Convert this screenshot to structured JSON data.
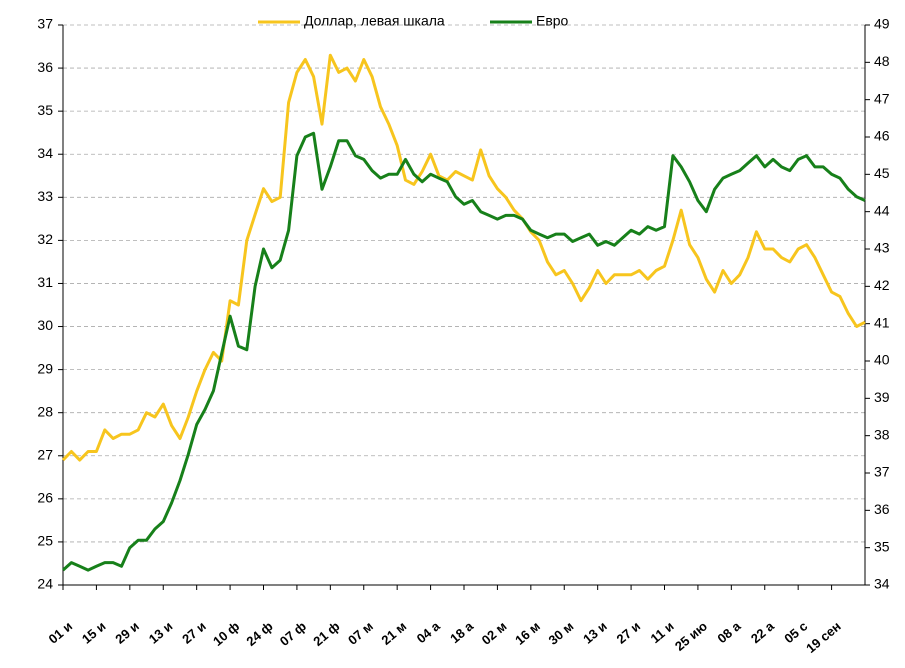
{
  "chart_data": {
    "type": "line",
    "categories": [
      "01 и",
      null,
      null,
      null,
      "15 и",
      null,
      null,
      null,
      "29 и",
      null,
      null,
      null,
      "13 и",
      null,
      null,
      null,
      "27 и",
      null,
      null,
      null,
      "10 ф",
      null,
      null,
      null,
      "24 ф",
      null,
      null,
      null,
      "07 ф",
      null,
      null,
      null,
      "21 ф",
      null,
      null,
      null,
      "07 м",
      null,
      null,
      null,
      "21 м",
      null,
      null,
      null,
      "04 а",
      null,
      null,
      null,
      "18 а",
      null,
      null,
      null,
      "02 м",
      null,
      null,
      null,
      "16 м",
      null,
      null,
      null,
      "30 м",
      null,
      null,
      null,
      "13 и",
      null,
      null,
      null,
      "27 и",
      null,
      null,
      null,
      "11 и",
      null,
      null,
      null,
      "25 ию",
      null,
      null,
      null,
      "08 а",
      null,
      null,
      null,
      "22 а",
      null,
      null,
      null,
      "05 с",
      null,
      null,
      null,
      "19 сен",
      null,
      null,
      null,
      null
    ],
    "series": [
      {
        "name": "Доллар, левая шкала",
        "color": "#f7c51e",
        "values": [
          26.9,
          27.1,
          26.9,
          27.1,
          27.1,
          27.6,
          27.4,
          27.5,
          27.5,
          27.6,
          28.0,
          27.9,
          28.2,
          27.7,
          27.4,
          27.9,
          28.5,
          29.0,
          29.4,
          29.2,
          30.6,
          30.5,
          32.0,
          32.6,
          33.2,
          32.9,
          33.0,
          35.2,
          35.9,
          36.2,
          35.8,
          34.7,
          36.3,
          35.9,
          36.0,
          35.7,
          36.2,
          35.8,
          35.1,
          34.7,
          34.2,
          33.4,
          33.3,
          33.6,
          34.0,
          33.5,
          33.4,
          33.6,
          33.5,
          33.4,
          34.1,
          33.5,
          33.2,
          33.0,
          32.7,
          32.5,
          32.2,
          32.0,
          31.5,
          31.2,
          31.3,
          31.0,
          30.6,
          30.9,
          31.3,
          31.0,
          31.2,
          31.2,
          31.2,
          31.3,
          31.1,
          31.3,
          31.4,
          32.0,
          32.7,
          31.9,
          31.6,
          31.1,
          30.8,
          31.3,
          31.0,
          31.2,
          31.6,
          32.2,
          31.8,
          31.8,
          31.6,
          31.5,
          31.8,
          31.9,
          31.6,
          31.2,
          30.8,
          30.7,
          30.3,
          30.0,
          30.1
        ]
      },
      {
        "name": "Евро",
        "color": "#17801a",
        "axis": "y2",
        "values": [
          34.4,
          34.6,
          34.5,
          34.4,
          34.5,
          34.6,
          34.6,
          34.5,
          35.0,
          35.2,
          35.2,
          35.5,
          35.7,
          36.2,
          36.8,
          37.5,
          38.3,
          38.7,
          39.2,
          40.2,
          41.2,
          40.4,
          40.3,
          42.0,
          43.0,
          42.5,
          42.7,
          43.5,
          45.5,
          46.0,
          46.1,
          44.6,
          45.2,
          45.9,
          45.9,
          45.5,
          45.4,
          45.1,
          44.9,
          45.0,
          45.0,
          45.4,
          45.0,
          44.8,
          45.0,
          44.9,
          44.8,
          44.4,
          44.2,
          44.3,
          44.0,
          43.9,
          43.8,
          43.9,
          43.9,
          43.8,
          43.5,
          43.4,
          43.3,
          43.4,
          43.4,
          43.2,
          43.3,
          43.4,
          43.1,
          43.2,
          43.1,
          43.3,
          43.5,
          43.4,
          43.6,
          43.5,
          43.6,
          45.5,
          45.2,
          44.8,
          44.3,
          44.0,
          44.6,
          44.9,
          45.0,
          45.1,
          45.3,
          45.5,
          45.2,
          45.4,
          45.2,
          45.1,
          45.4,
          45.5,
          45.2,
          45.2,
          45.0,
          44.9,
          44.6,
          44.4,
          44.3
        ]
      }
    ],
    "ylim": [
      24,
      37
    ],
    "yticks": [
      24,
      25,
      26,
      27,
      28,
      29,
      30,
      31,
      32,
      33,
      34,
      35,
      36,
      37
    ],
    "y2lim": [
      34,
      49
    ],
    "y2ticks": [
      34,
      35,
      36,
      37,
      38,
      39,
      40,
      41,
      42,
      43,
      44,
      45,
      46,
      47,
      48,
      49
    ],
    "grid": true,
    "legend": "top"
  }
}
